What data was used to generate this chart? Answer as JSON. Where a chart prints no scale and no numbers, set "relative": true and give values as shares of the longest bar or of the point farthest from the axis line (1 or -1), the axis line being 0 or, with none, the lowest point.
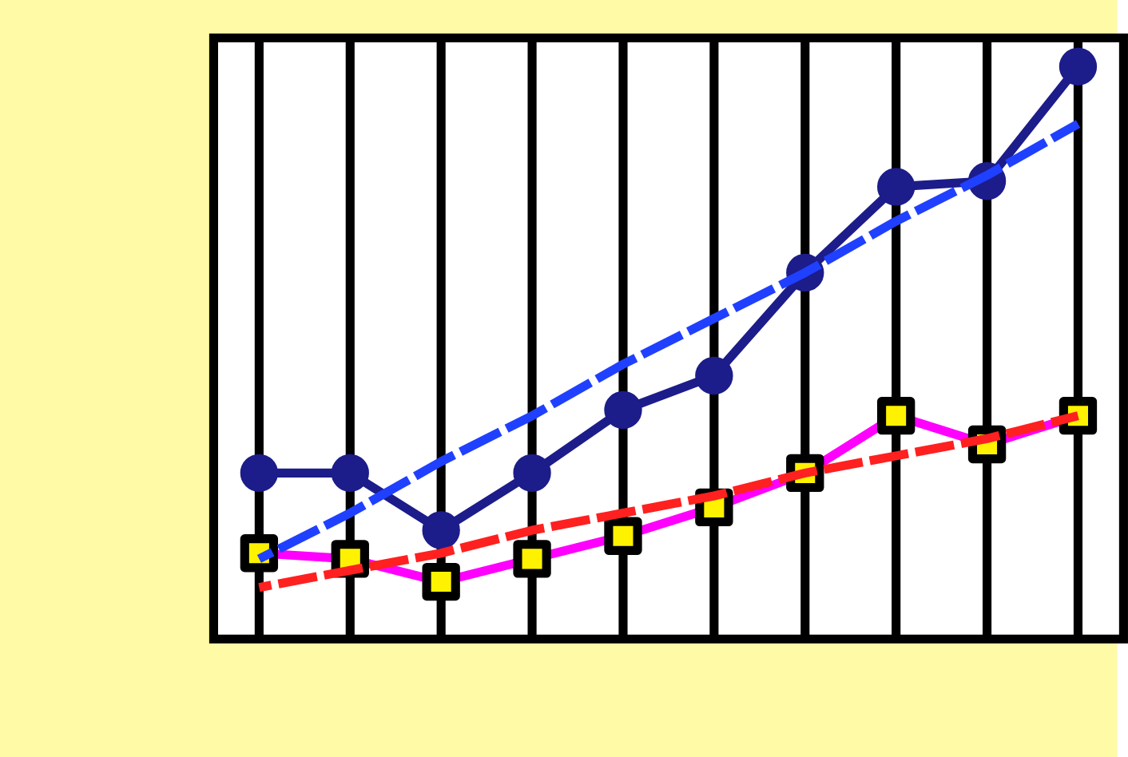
{
  "chart_data": {
    "type": "line",
    "relative": true,
    "grid": "x",
    "categories": [
      null,
      null,
      null,
      null,
      null,
      null,
      null,
      null,
      null,
      null
    ],
    "series": [
      {
        "color": "#1c1c8a",
        "marker": "circle",
        "line_style": "solid",
        "values": [
          0.29,
          0.29,
          0.19,
          0.29,
          0.4,
          0.46,
          0.64,
          0.79,
          0.8,
          1
        ]
      },
      {
        "color": "#ff00ff",
        "marker": "square",
        "line_style": "solid",
        "values": [
          0.15,
          0.14,
          0.1,
          0.14,
          0.18,
          0.23,
          0.29,
          0.39,
          0.34,
          0.39
        ]
      },
      {
        "color": "#2040ff",
        "marker": "none",
        "line_style": "dashed",
        "values": [
          0.14,
          0.22,
          0.31,
          0.39,
          0.48,
          0.56,
          0.64,
          0.73,
          0.81,
          0.9
        ]
      },
      {
        "color": "#ff2020",
        "marker": "none",
        "line_style": "dashed",
        "values": [
          0.09,
          0.12,
          0.15,
          0.19,
          0.22,
          0.25,
          0.29,
          0.32,
          0.35,
          0.39
        ]
      }
    ]
  }
}
